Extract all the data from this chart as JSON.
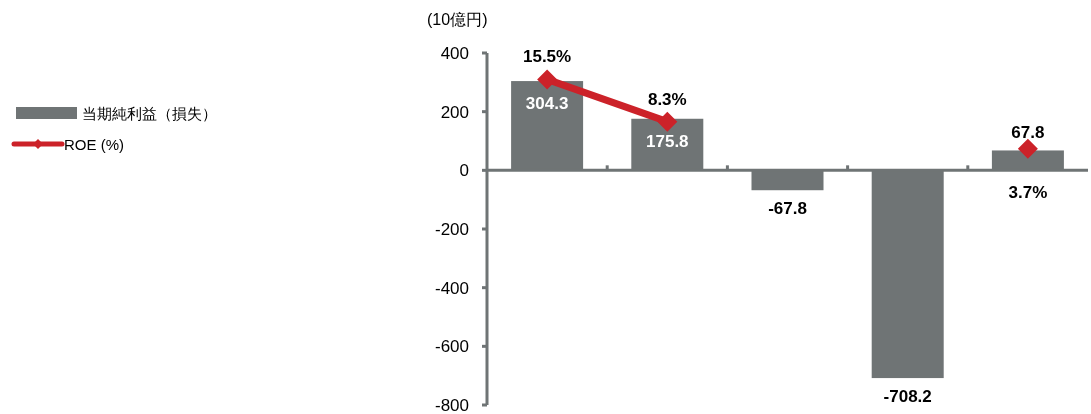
{
  "chart_data": {
    "type": "bar",
    "ylabel": "(10億円)",
    "categories": [
      null,
      null,
      null,
      null,
      null
    ],
    "series": [
      {
        "name": "当期純利益（損失）",
        "color": "#6f7475",
        "values": [
          304.3,
          175.8,
          -67.8,
          -708.2,
          67.8
        ],
        "value_labels": [
          "304.3",
          "175.8",
          "-67.8",
          "-708.2",
          "67.8"
        ]
      },
      {
        "name": "ROE (%)",
        "type": "line",
        "axis": "y2",
        "color": "#cc2229",
        "marker": "diamond",
        "values": [
          15.5,
          8.3,
          null,
          null,
          3.7
        ],
        "value_labels": [
          "15.5%",
          "8.3%",
          null,
          null,
          "3.7%"
        ]
      }
    ],
    "ylim": [
      -800,
      400
    ],
    "yticks": [
      -800,
      -600,
      -400,
      -200,
      0,
      200,
      400
    ],
    "y2lim": [
      -40,
      20
    ],
    "legend": "left",
    "tick_labels": "y"
  }
}
